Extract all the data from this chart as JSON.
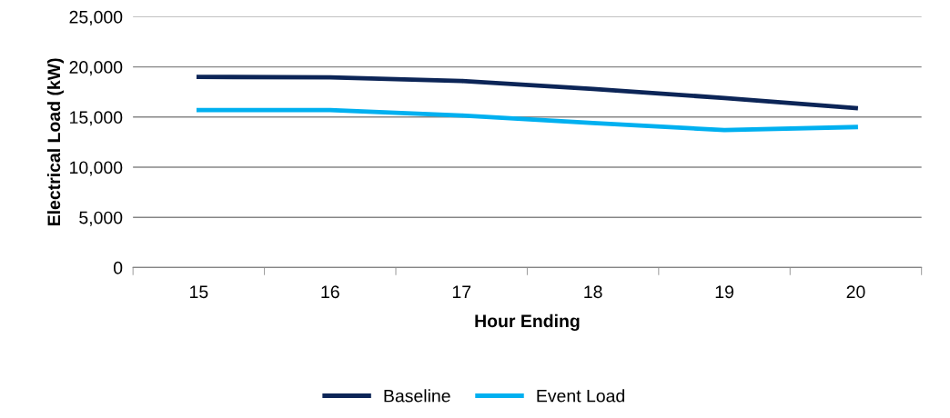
{
  "chart_data": {
    "type": "line",
    "xlabel": "Hour Ending",
    "ylabel": "Electrical Load (kW)",
    "categories": [
      "15",
      "16",
      "17",
      "18",
      "19",
      "20"
    ],
    "series": [
      {
        "name": "Baseline",
        "color": "#0c2557",
        "values": [
          19000,
          18950,
          18600,
          17800,
          16900,
          15900
        ]
      },
      {
        "name": "Event Load",
        "color": "#00b0f0",
        "values": [
          15700,
          15700,
          15150,
          14400,
          13700,
          14000
        ]
      }
    ],
    "ylim": [
      0,
      25000
    ],
    "yticks": [
      0,
      {
        "value": 5000,
        "label": "5,000"
      },
      {
        "value": 10000,
        "label": "10,000"
      },
      {
        "value": 15000,
        "label": "15,000"
      },
      {
        "value": 20000,
        "label": "20,000"
      },
      {
        "value": 25000,
        "label": "25,000"
      }
    ],
    "grid": "y",
    "legend": "bottom",
    "marker": "none",
    "line_style": "solid"
  }
}
